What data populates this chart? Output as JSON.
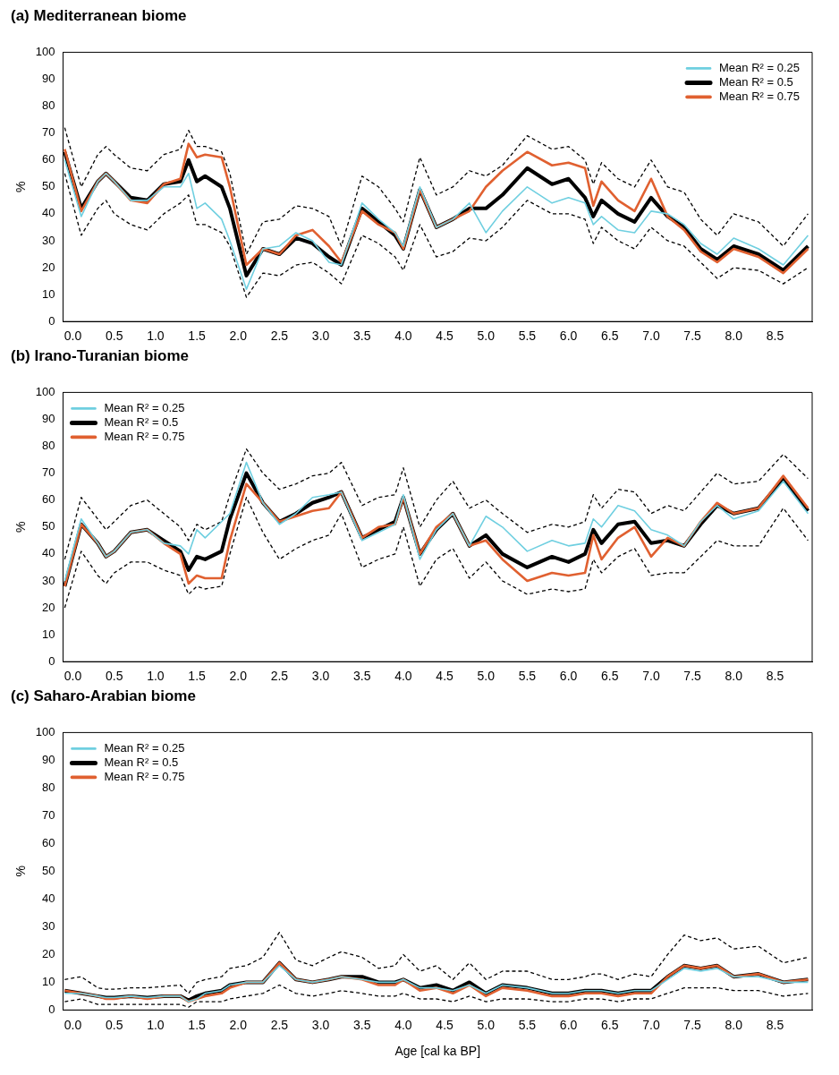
{
  "chart_data": [
    {
      "type": "line",
      "title": "(a) Mediterranean biome",
      "ylabel": "%",
      "legend": "top right",
      "marker": "none",
      "grid": false,
      "x": [
        -0.1,
        0.1,
        0.3,
        0.4,
        0.5,
        0.7,
        0.9,
        1.1,
        1.3,
        1.4,
        1.5,
        1.6,
        1.8,
        1.9,
        2.1,
        2.3,
        2.5,
        2.7,
        2.9,
        3.1,
        3.25,
        3.5,
        3.7,
        3.9,
        4.0,
        4.2,
        4.4,
        4.6,
        4.8,
        5.0,
        5.2,
        5.5,
        5.8,
        6.0,
        6.2,
        6.3,
        6.4,
        6.6,
        6.8,
        7.0,
        7.2,
        7.4,
        7.6,
        7.8,
        8.0,
        8.3,
        8.6,
        8.9
      ],
      "xlim": [
        -0.12,
        8.95
      ],
      "xticks": [
        {
          "value": 0,
          "label": "0.0"
        },
        0.5,
        {
          "value": 1,
          "label": "1.0"
        },
        1.5,
        {
          "value": 2,
          "label": "2.0"
        },
        2.5,
        {
          "value": 3,
          "label": "3.0"
        },
        3.5,
        {
          "value": 4,
          "label": "4.0"
        },
        4.5,
        {
          "value": 5,
          "label": "5.0"
        },
        5.5,
        {
          "value": 6,
          "label": "6.0"
        },
        6.5,
        {
          "value": 7,
          "label": "7.0"
        },
        7.5,
        {
          "value": 8,
          "label": "8.0"
        },
        8.5
      ],
      "ylim": [
        0,
        100
      ],
      "yticks": [
        0,
        10,
        20,
        30,
        40,
        50,
        60,
        70,
        80,
        90,
        100
      ],
      "series": [
        {
          "name": "Mean R² = 0.25",
          "color": "#6fcfe0",
          "values": [
            60,
            39,
            52,
            55,
            52,
            45,
            45,
            50,
            50,
            55,
            42,
            44,
            38,
            30,
            12,
            27,
            28,
            33,
            30,
            22,
            21,
            44,
            38,
            33,
            28,
            50,
            35,
            38,
            44,
            33,
            41,
            50,
            44,
            46,
            44,
            36,
            39,
            34,
            33,
            41,
            40,
            36,
            29,
            25,
            31,
            27,
            21,
            32
          ]
        },
        {
          "name": "Mean R² = 0.5",
          "color": "#000000",
          "values": [
            63,
            42,
            52,
            55,
            52,
            46,
            45,
            51,
            52,
            60,
            52,
            54,
            50,
            42,
            17,
            27,
            25,
            31,
            29,
            24,
            21,
            42,
            37,
            32,
            27,
            49,
            35,
            38,
            42,
            42,
            47,
            57,
            51,
            53,
            46,
            39,
            45,
            40,
            37,
            46,
            39,
            35,
            27,
            23,
            28,
            25,
            19,
            28
          ]
        },
        {
          "name": "Mean R² = 0.75",
          "color": "#e06030",
          "values": [
            64,
            41,
            52,
            55,
            52,
            45,
            44,
            51,
            53,
            66,
            61,
            62,
            61,
            50,
            21,
            27,
            25,
            32,
            34,
            28,
            22,
            41,
            36,
            33,
            27,
            49,
            35,
            38,
            41,
            50,
            56,
            63,
            58,
            59,
            57,
            43,
            52,
            45,
            41,
            53,
            39,
            34,
            26,
            22,
            27,
            24,
            18,
            27
          ]
        },
        {
          "color": "#000000",
          "line_style": "dashed",
          "values": [
            55,
            32,
            42,
            45,
            40,
            36,
            34,
            40,
            44,
            47,
            36,
            36,
            33,
            28,
            9,
            18,
            17,
            21,
            22,
            18,
            14,
            32,
            29,
            24,
            19,
            36,
            24,
            26,
            31,
            30,
            35,
            45,
            40,
            40,
            38,
            29,
            35,
            30,
            27,
            35,
            30,
            28,
            22,
            16,
            20,
            19,
            14,
            20
          ]
        },
        {
          "color": "#000000",
          "line_style": "dashed",
          "values": [
            72,
            50,
            62,
            65,
            62,
            57,
            56,
            62,
            64,
            71,
            65,
            65,
            63,
            55,
            25,
            37,
            38,
            43,
            42,
            39,
            28,
            54,
            50,
            42,
            37,
            61,
            47,
            50,
            56,
            54,
            58,
            69,
            64,
            65,
            60,
            51,
            59,
            53,
            50,
            60,
            50,
            48,
            38,
            32,
            40,
            37,
            28,
            40
          ]
        }
      ]
    },
    {
      "type": "line",
      "title": "(b) Irano-Turanian biome",
      "ylabel": "%",
      "legend": "top left",
      "marker": "none",
      "grid": false,
      "x": [
        -0.1,
        0.1,
        0.3,
        0.4,
        0.5,
        0.7,
        0.9,
        1.1,
        1.3,
        1.4,
        1.5,
        1.6,
        1.8,
        1.9,
        2.1,
        2.3,
        2.5,
        2.7,
        2.9,
        3.1,
        3.25,
        3.5,
        3.7,
        3.9,
        4.0,
        4.2,
        4.4,
        4.6,
        4.8,
        5.0,
        5.2,
        5.5,
        5.8,
        6.0,
        6.2,
        6.3,
        6.4,
        6.6,
        6.8,
        7.0,
        7.2,
        7.4,
        7.6,
        7.8,
        8.0,
        8.3,
        8.6,
        8.9
      ],
      "xlim": [
        -0.12,
        8.95
      ],
      "xticks": [
        {
          "value": 0,
          "label": "0.0"
        },
        0.5,
        {
          "value": 1,
          "label": "1.0"
        },
        1.5,
        {
          "value": 2,
          "label": "2.0"
        },
        2.5,
        {
          "value": 3,
          "label": "3.0"
        },
        3.5,
        {
          "value": 4,
          "label": "4.0"
        },
        4.5,
        {
          "value": 5,
          "label": "5.0"
        },
        5.5,
        {
          "value": 6,
          "label": "6.0"
        },
        6.5,
        {
          "value": 7,
          "label": "7.0"
        },
        7.5,
        {
          "value": 8,
          "label": "8.0"
        },
        8.5
      ],
      "ylim": [
        0,
        100
      ],
      "yticks": [
        0,
        10,
        20,
        30,
        40,
        50,
        60,
        70,
        80,
        90,
        100
      ],
      "series": [
        {
          "name": "Mean R² = 0.25",
          "color": "#6fcfe0",
          "values": [
            30,
            53,
            44,
            39,
            41,
            48,
            49,
            44,
            43,
            40,
            49,
            46,
            52,
            55,
            74,
            59,
            51,
            55,
            61,
            62,
            63,
            45,
            48,
            51,
            62,
            38,
            49,
            55,
            43,
            54,
            50,
            41,
            45,
            43,
            44,
            53,
            50,
            58,
            56,
            49,
            47,
            43,
            52,
            58,
            53,
            56,
            67,
            55
          ]
        },
        {
          "name": "Mean R² = 0.5",
          "color": "#000000",
          "values": [
            28,
            51,
            44,
            39,
            41,
            48,
            49,
            45,
            41,
            34,
            39,
            38,
            41,
            53,
            70,
            59,
            52,
            55,
            59,
            61,
            63,
            46,
            49,
            52,
            61,
            40,
            49,
            55,
            43,
            47,
            40,
            35,
            39,
            37,
            40,
            49,
            44,
            51,
            52,
            44,
            45,
            43,
            51,
            58,
            55,
            57,
            68,
            56
          ]
        },
        {
          "name": "Mean R² = 0.75",
          "color": "#e06030",
          "values": [
            28,
            51,
            44,
            39,
            41,
            48,
            49,
            44,
            40,
            29,
            32,
            31,
            31,
            45,
            66,
            59,
            52,
            54,
            56,
            57,
            63,
            46,
            50,
            51,
            61,
            40,
            50,
            55,
            43,
            45,
            38,
            30,
            33,
            32,
            33,
            47,
            38,
            46,
            50,
            39,
            46,
            43,
            52,
            59,
            55,
            57,
            69,
            57
          ]
        },
        {
          "color": "#000000",
          "line_style": "dashed",
          "values": [
            20,
            41,
            32,
            29,
            33,
            37,
            37,
            34,
            32,
            25,
            28,
            27,
            28,
            40,
            61,
            48,
            38,
            42,
            45,
            47,
            55,
            35,
            38,
            40,
            50,
            28,
            38,
            42,
            31,
            37,
            30,
            25,
            27,
            26,
            27,
            38,
            33,
            39,
            42,
            32,
            33,
            33,
            39,
            45,
            43,
            43,
            57,
            45
          ]
        },
        {
          "color": "#000000",
          "line_style": "dashed",
          "values": [
            38,
            61,
            53,
            49,
            52,
            58,
            60,
            55,
            50,
            45,
            51,
            49,
            52,
            62,
            79,
            70,
            64,
            66,
            69,
            70,
            74,
            58,
            61,
            62,
            72,
            50,
            60,
            67,
            57,
            60,
            55,
            48,
            51,
            50,
            52,
            62,
            57,
            64,
            63,
            55,
            58,
            56,
            63,
            70,
            66,
            67,
            77,
            68
          ]
        }
      ]
    },
    {
      "type": "line",
      "title": "(c) Saharo-Arabian biome",
      "ylabel": "%",
      "xlabel": "Age [cal ka BP]",
      "legend": "top left",
      "marker": "none",
      "grid": false,
      "x": [
        -0.1,
        0.1,
        0.3,
        0.4,
        0.5,
        0.7,
        0.9,
        1.1,
        1.3,
        1.4,
        1.5,
        1.6,
        1.8,
        1.9,
        2.1,
        2.3,
        2.5,
        2.7,
        2.9,
        3.1,
        3.25,
        3.5,
        3.7,
        3.9,
        4.0,
        4.2,
        4.4,
        4.6,
        4.8,
        5.0,
        5.2,
        5.5,
        5.8,
        6.0,
        6.2,
        6.3,
        6.4,
        6.6,
        6.8,
        7.0,
        7.2,
        7.4,
        7.6,
        7.8,
        8.0,
        8.3,
        8.6,
        8.9
      ],
      "xlim": [
        -0.12,
        8.95
      ],
      "xticks": [
        {
          "value": 0,
          "label": "0.0"
        },
        0.5,
        {
          "value": 1,
          "label": "1.0"
        },
        1.5,
        {
          "value": 2,
          "label": "2.0"
        },
        2.5,
        {
          "value": 3,
          "label": "3.0"
        },
        3.5,
        {
          "value": 4,
          "label": "4.0"
        },
        4.5,
        {
          "value": 5,
          "label": "5.0"
        },
        5.5,
        {
          "value": 6,
          "label": "6.0"
        },
        6.5,
        {
          "value": 7,
          "label": "7.0"
        },
        7.5,
        {
          "value": 8,
          "label": "8.0"
        },
        8.5
      ],
      "ylim": [
        0,
        100
      ],
      "yticks": [
        0,
        10,
        20,
        30,
        40,
        50,
        60,
        70,
        80,
        90,
        100
      ],
      "series": [
        {
          "name": "Mean R² = 0.25",
          "color": "#6fcfe0",
          "values": [
            6,
            6,
            5,
            4.5,
            4.5,
            5,
            4.5,
            5,
            5,
            3,
            4,
            6,
            7,
            9,
            10,
            10,
            16,
            11,
            10,
            11,
            12,
            11,
            10,
            10,
            11,
            8,
            8,
            7,
            9,
            6,
            9,
            8,
            6,
            6,
            7,
            7,
            7,
            6,
            7,
            7,
            11,
            15,
            14,
            15,
            12,
            12,
            10,
            10
          ]
        },
        {
          "name": "Mean R² = 0.5",
          "color": "#000000",
          "values": [
            7,
            6,
            5,
            4.5,
            4.5,
            5,
            4.5,
            5,
            5,
            3.5,
            5,
            6,
            7,
            9,
            10,
            10,
            17,
            11,
            10,
            11,
            12,
            12,
            10,
            10,
            11,
            8,
            9,
            7,
            10,
            6,
            9,
            8,
            6,
            6,
            7,
            7,
            7,
            6,
            7,
            7,
            12,
            16,
            15,
            16,
            12,
            13,
            10,
            11
          ]
        },
        {
          "name": "Mean R² = 0.75",
          "color": "#e06030",
          "values": [
            7,
            6,
            5,
            4,
            4,
            5,
            4,
            5,
            5,
            3,
            4,
            5,
            6,
            8,
            10,
            10,
            17,
            11,
            10,
            11,
            12,
            11,
            9,
            9,
            11,
            7,
            8,
            6,
            9,
            5,
            8,
            7,
            5,
            5,
            6,
            6,
            6,
            5,
            6,
            6,
            12,
            16,
            15,
            16,
            12,
            13,
            10,
            11
          ]
        },
        {
          "color": "#000000",
          "line_style": "dashed",
          "values": [
            3,
            4,
            2,
            2,
            2,
            2,
            2,
            2,
            2,
            1,
            3,
            3,
            3,
            4,
            5,
            6,
            9,
            6,
            5,
            6,
            7,
            6,
            5,
            5,
            6,
            4,
            4,
            3,
            5,
            3,
            4,
            4,
            3,
            3,
            4,
            4,
            4,
            3,
            4,
            4,
            6,
            8,
            8,
            8,
            7,
            7,
            5,
            6
          ]
        },
        {
          "color": "#000000",
          "line_style": "dashed",
          "values": [
            11,
            12,
            8,
            7.5,
            7.5,
            8,
            8,
            8.5,
            9,
            6,
            10,
            11,
            12,
            15,
            16,
            19,
            28,
            18,
            16,
            19,
            21,
            19,
            15,
            16,
            20,
            14,
            16,
            11,
            17,
            11,
            14,
            14,
            11,
            11,
            12,
            13,
            13,
            11,
            13,
            12,
            20,
            27,
            25,
            26,
            22,
            23,
            17,
            19
          ]
        }
      ]
    }
  ]
}
